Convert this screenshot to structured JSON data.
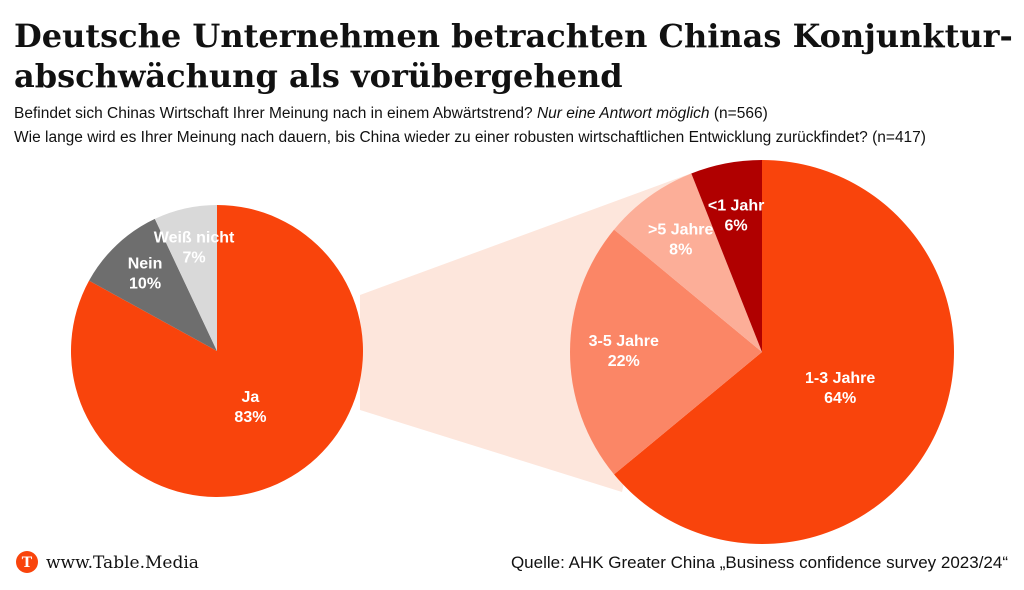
{
  "title_lines": [
    "Deutsche Unternehmen betrachten Chinas Konjunktur-",
    "abschwächung als vorübergehend"
  ],
  "subtitle_1": {
    "question": "Befindet sich Chinas Wirtschaft Ihrer Meinung nach in einem Abwärtstrend?",
    "note": "Nur eine Antwort möglich",
    "n": "(n=566)"
  },
  "subtitle_2": "Wie lange wird es Ihrer Meinung nach dauern, bis China wieder zu einer robusten wirtschaftlichen Entwicklung zurückfindet? (n=417)",
  "brand": "www.Table.Media",
  "source": "Quelle: AHK Greater China „Business confidence survey 2023/24“",
  "chart_data": [
    {
      "type": "pie",
      "categories": [
        "Ja",
        "Nein",
        "Weiß nicht"
      ],
      "values": [
        83,
        10,
        7
      ],
      "value_labels": [
        "83%",
        "10%",
        "7%"
      ],
      "colors": [
        "#f9440c",
        "#6e6e6e",
        "#d9d9d9"
      ]
    },
    {
      "type": "pie",
      "categories": [
        "1-3 Jahre",
        "3-5 Jahre",
        ">5 Jahre",
        "<1 Jahr"
      ],
      "values": [
        64,
        22,
        8,
        6
      ],
      "value_labels": [
        "64%",
        "22%",
        "8%",
        "6%"
      ],
      "colors": [
        "#f9440c",
        "#fb8666",
        "#fcae98",
        "#b00000"
      ]
    }
  ]
}
